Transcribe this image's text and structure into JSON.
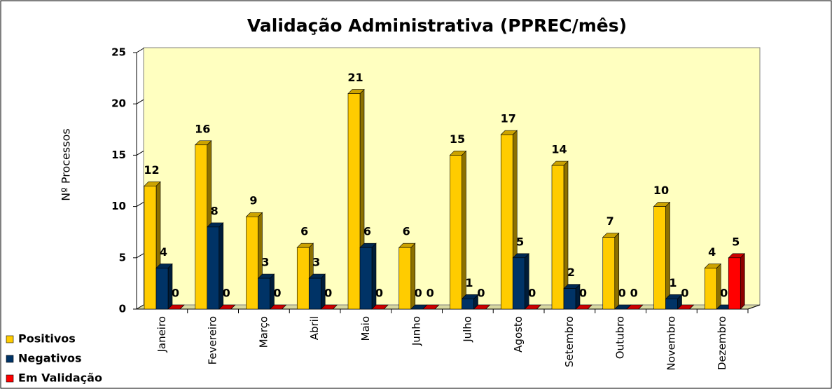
{
  "chart_data": {
    "type": "bar3d",
    "title": "Validação Administrativa (PPREC/mês)",
    "ylabel": "Nº Processos",
    "categories": [
      "Janeiro",
      "Fevereiro",
      "Março",
      "Abril",
      "Maio",
      "Junho",
      "Julho",
      "Agosto",
      "Setembro",
      "Outubro",
      "Novembro",
      "Dezembro"
    ],
    "series": [
      {
        "name": "Positivos",
        "color": "#ffcc00",
        "values": [
          12,
          16,
          9,
          6,
          21,
          6,
          15,
          17,
          14,
          7,
          10,
          4
        ]
      },
      {
        "name": "Negativos",
        "color": "#003366",
        "values": [
          4,
          8,
          3,
          3,
          6,
          0,
          1,
          5,
          2,
          0,
          1,
          0
        ]
      },
      {
        "name": "Em Validação",
        "color": "#ff0000",
        "values": [
          0,
          0,
          0,
          0,
          0,
          0,
          0,
          0,
          0,
          0,
          0,
          5
        ]
      }
    ],
    "ylim": [
      0,
      25
    ],
    "yticks": [
      0,
      5,
      10,
      15,
      20,
      25
    ]
  }
}
